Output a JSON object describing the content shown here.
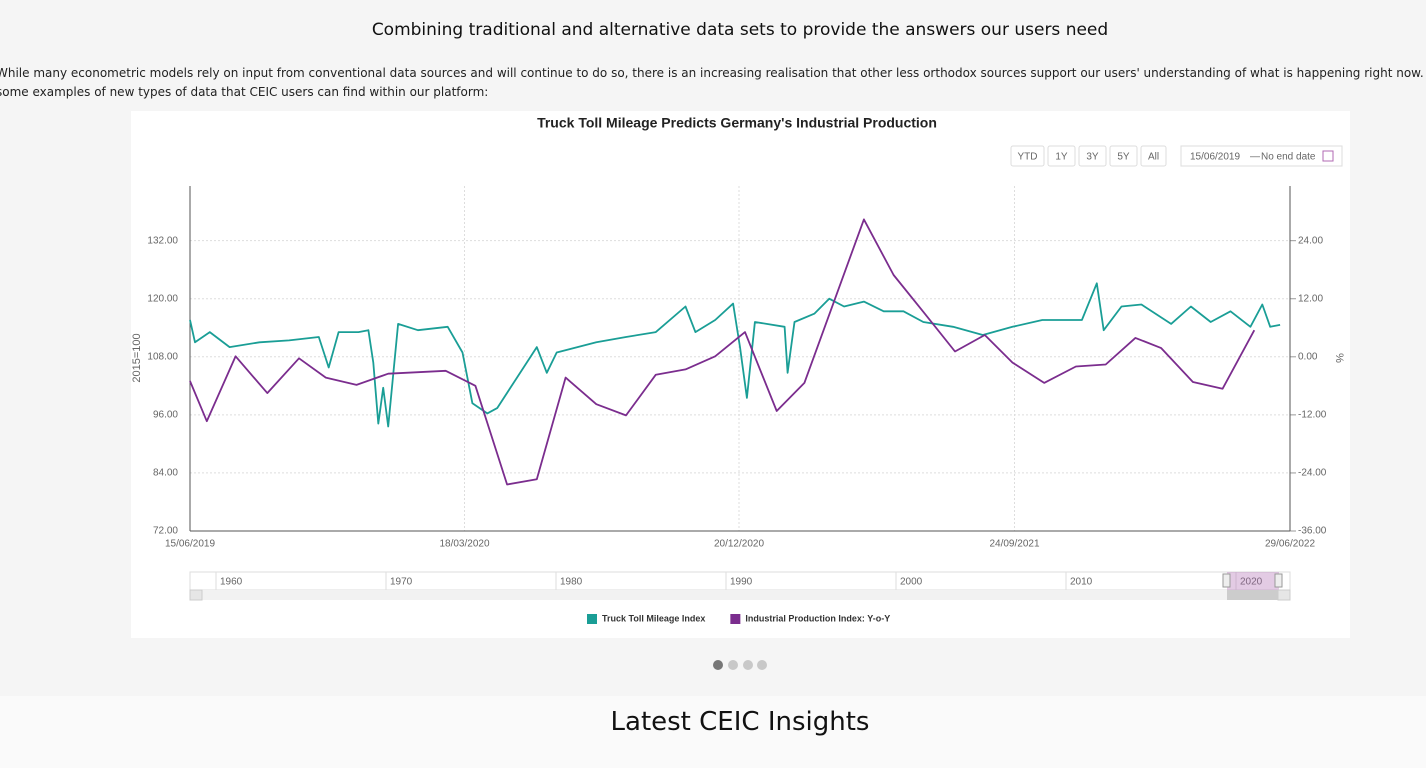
{
  "page": {
    "heading": "Combining traditional and alternative data sets to provide the answers our users need",
    "paragraph": "While many econometric models rely on input from conventional data sources and will continue to do so, there is an increasing realisation that other less orthodox sources support our users' understanding of what is happening right now. Here are some examples of new types of data that CEIC users can find within our platform:",
    "insights_heading": "Latest CEIC Insights"
  },
  "chart_data": {
    "type": "line",
    "title": "Truck Toll Mileage Predicts Germany's Industrial Production",
    "range_selector": {
      "buttons": [
        "YTD",
        "1Y",
        "3Y",
        "5Y",
        "All"
      ],
      "from": "15/06/2019",
      "separator": "—",
      "to": "No end date"
    },
    "ylabel": "2015=100",
    "y2label": "%",
    "xlim": [
      "2019-06-15",
      "2022-06-29"
    ],
    "xticks": [
      {
        "value": "2019-06-15",
        "label": "15/06/2019"
      },
      {
        "value": "2020-03-18",
        "label": "18/03/2020"
      },
      {
        "value": "2020-12-20",
        "label": "20/12/2020"
      },
      {
        "value": "2021-09-24",
        "label": "24/09/2021"
      },
      {
        "value": "2022-06-29",
        "label": "29/06/2022"
      }
    ],
    "ylim": [
      72,
      143.3
    ],
    "yticks": [
      {
        "value": 72,
        "label": "72.00"
      },
      {
        "value": 84,
        "label": "84.00"
      },
      {
        "value": 96,
        "label": "96.00"
      },
      {
        "value": 108,
        "label": "108.00"
      },
      {
        "value": 120,
        "label": "120.00"
      },
      {
        "value": 132,
        "label": "132.00"
      }
    ],
    "y2lim": [
      -36,
      35.3
    ],
    "y2ticks": [
      {
        "value": -36,
        "label": "-36.00"
      },
      {
        "value": -24,
        "label": "-24.00"
      },
      {
        "value": -12,
        "label": "-12.00"
      },
      {
        "value": 0,
        "label": "0.00"
      },
      {
        "value": 12,
        "label": "12.00"
      },
      {
        "value": 24,
        "label": "24.00"
      }
    ],
    "grid": true,
    "series": [
      {
        "name": "Truck Toll Mileage Index",
        "color": "#1a9e96",
        "x": [
          "2019-06-15",
          "2019-06-20",
          "2019-07-05",
          "2019-07-25",
          "2019-08-24",
          "2019-09-23",
          "2019-10-23",
          "2019-11-02",
          "2019-11-12",
          "2019-12-02",
          "2019-12-12",
          "2019-12-17",
          "2019-12-22",
          "2019-12-27",
          "2020-01-01",
          "2020-01-11",
          "2020-01-31",
          "2020-03-01",
          "2020-03-16",
          "2020-03-26",
          "2020-04-10",
          "2020-04-20",
          "2020-05-10",
          "2020-05-30",
          "2020-06-09",
          "2020-06-19",
          "2020-07-29",
          "2020-08-28",
          "2020-09-27",
          "2020-10-27",
          "2020-11-06",
          "2020-11-26",
          "2020-12-14",
          "2020-12-21",
          "2020-12-28",
          "2021-01-05",
          "2021-02-04",
          "2021-02-07",
          "2021-02-14",
          "2021-03-06",
          "2021-03-21",
          "2021-04-05",
          "2021-04-25",
          "2021-05-15",
          "2021-06-04",
          "2021-06-24",
          "2021-07-24",
          "2021-08-23",
          "2021-09-22",
          "2021-10-22",
          "2021-12-01",
          "2021-12-16",
          "2021-12-23",
          "2022-01-10",
          "2022-01-30",
          "2022-03-01",
          "2022-03-21",
          "2022-04-10",
          "2022-04-30",
          "2022-05-20",
          "2022-06-01",
          "2022-06-09",
          "2022-06-19"
        ],
        "values": [
          115.6,
          111.0,
          113.1,
          110.0,
          111.0,
          111.4,
          112.1,
          105.8,
          113.1,
          113.1,
          113.5,
          106.8,
          94.2,
          101.6,
          93.6,
          114.8,
          113.5,
          114.2,
          108.9,
          98.4,
          96.3,
          97.4,
          103.7,
          110.0,
          104.7,
          108.9,
          111.0,
          112.1,
          113.1,
          118.4,
          113.1,
          115.6,
          119.0,
          110.0,
          99.5,
          115.2,
          114.2,
          104.7,
          115.2,
          116.9,
          120.0,
          118.4,
          119.4,
          117.4,
          117.4,
          115.2,
          114.2,
          112.5,
          114.2,
          115.6,
          115.6,
          123.2,
          113.5,
          118.4,
          118.8,
          114.8,
          118.4,
          115.2,
          117.4,
          114.2,
          118.8,
          114.2,
          114.6
        ]
      },
      {
        "name": "Industrial Production Index: Y-o-Y",
        "color": "#7b2d8e",
        "axis": "y2",
        "x": [
          "2019-06-15",
          "2019-07-02",
          "2019-07-31",
          "2019-09-01",
          "2019-10-03",
          "2019-10-30",
          "2019-11-30",
          "2020-01-01",
          "2020-02-28",
          "2020-03-29",
          "2020-04-30",
          "2020-05-30",
          "2020-06-28",
          "2020-07-29",
          "2020-08-28",
          "2020-09-27",
          "2020-10-27",
          "2020-11-26",
          "2020-12-26",
          "2021-01-27",
          "2021-02-24",
          "2021-04-25",
          "2021-05-25",
          "2021-06-24",
          "2021-07-26",
          "2021-08-25",
          "2021-09-22",
          "2021-10-24",
          "2021-11-25",
          "2021-12-25",
          "2022-01-24",
          "2022-02-19",
          "2022-03-23",
          "2022-04-22",
          "2022-05-24"
        ],
        "values": [
          -5.0,
          -13.3,
          0.1,
          -7.5,
          -0.3,
          -4.3,
          -5.8,
          -3.5,
          -2.9,
          -6.0,
          -26.4,
          -25.3,
          -4.3,
          -9.8,
          -12.1,
          -3.7,
          -2.6,
          0.1,
          5.1,
          -11.2,
          -5.4,
          28.4,
          16.9,
          9.3,
          1.1,
          4.5,
          -1.2,
          -5.4,
          -2.0,
          -1.6,
          3.9,
          1.8,
          -5.2,
          -6.6,
          5.5
        ]
      }
    ],
    "navigator": {
      "labels": [
        "1960",
        "1970",
        "1980",
        "1990",
        "2000",
        "2010",
        "2020"
      ]
    }
  }
}
